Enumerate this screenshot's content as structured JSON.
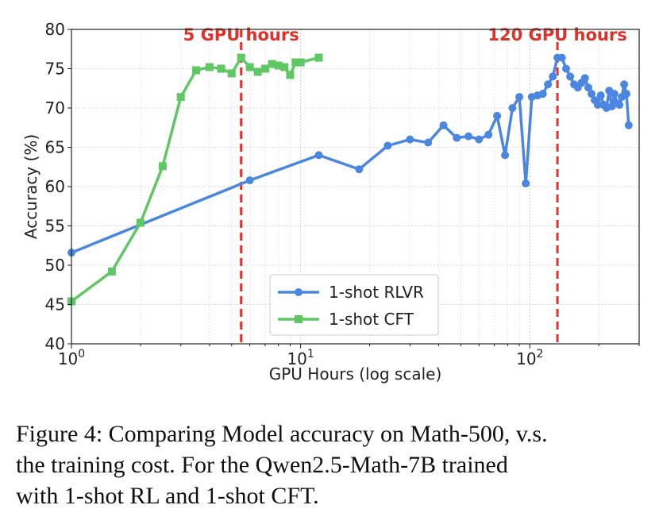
{
  "chart_data": {
    "type": "line",
    "xscale": "log",
    "xlabel": "GPU Hours (log scale)",
    "ylabel": "Accuracy (%)",
    "xlim": [
      1,
      300
    ],
    "ylim": [
      40,
      80
    ],
    "yticks": [
      40,
      45,
      50,
      55,
      60,
      65,
      70,
      75,
      80
    ],
    "xticks": [
      {
        "value": 1,
        "base": "10",
        "exp": "0"
      },
      {
        "value": 10,
        "base": "10",
        "exp": "1"
      },
      {
        "value": 100,
        "base": "10",
        "exp": "2"
      }
    ],
    "grid": true,
    "legend_position": "lower-center",
    "series": [
      {
        "name": "1-shot RLVR",
        "color": "#4b86e0",
        "marker": "circle",
        "points": [
          [
            1,
            51.6
          ],
          [
            6,
            60.8
          ],
          [
            12,
            64.0
          ],
          [
            18,
            62.2
          ],
          [
            24,
            65.2
          ],
          [
            30,
            66.0
          ],
          [
            36,
            65.6
          ],
          [
            42,
            67.8
          ],
          [
            48,
            66.2
          ],
          [
            54,
            66.4
          ],
          [
            60,
            66.0
          ],
          [
            66,
            66.6
          ],
          [
            72,
            69.0
          ],
          [
            78,
            64.0
          ],
          [
            84,
            70.0
          ],
          [
            90,
            71.4
          ],
          [
            96,
            60.4
          ],
          [
            102,
            71.4
          ],
          [
            108,
            71.6
          ],
          [
            114,
            71.8
          ],
          [
            120,
            73.0
          ],
          [
            126,
            74.0
          ],
          [
            132,
            76.4
          ],
          [
            138,
            76.4
          ],
          [
            144,
            75.0
          ],
          [
            150,
            74.0
          ],
          [
            156,
            73.0
          ],
          [
            162,
            72.6
          ],
          [
            168,
            73.2
          ],
          [
            174,
            73.8
          ],
          [
            180,
            72.6
          ],
          [
            186,
            71.8
          ],
          [
            192,
            71.0
          ],
          [
            198,
            70.4
          ],
          [
            204,
            71.6
          ],
          [
            210,
            70.4
          ],
          [
            216,
            70.0
          ],
          [
            222,
            72.2
          ],
          [
            228,
            70.2
          ],
          [
            234,
            71.8
          ],
          [
            240,
            70.6
          ],
          [
            246,
            70.4
          ],
          [
            252,
            71.4
          ],
          [
            258,
            73.0
          ],
          [
            264,
            71.8
          ],
          [
            270,
            67.8
          ]
        ]
      },
      {
        "name": "1-shot CFT",
        "color": "#5fc763",
        "marker": "square",
        "points": [
          [
            1,
            45.4
          ],
          [
            1.5,
            49.2
          ],
          [
            2,
            55.4
          ],
          [
            2.5,
            62.6
          ],
          [
            3,
            71.4
          ],
          [
            3.5,
            74.8
          ],
          [
            4,
            75.2
          ],
          [
            4.5,
            75.0
          ],
          [
            5,
            74.4
          ],
          [
            5.5,
            76.4
          ],
          [
            6,
            75.2
          ],
          [
            6.5,
            74.6
          ],
          [
            7,
            75.0
          ],
          [
            7.5,
            75.6
          ],
          [
            8,
            75.4
          ],
          [
            8.5,
            75.2
          ],
          [
            9,
            74.2
          ],
          [
            9.5,
            75.8
          ],
          [
            10,
            75.8
          ],
          [
            12,
            76.4
          ]
        ]
      }
    ],
    "vlines": [
      {
        "x": 5.5,
        "label": "5 GPU hours",
        "color": "#e0312a"
      },
      {
        "x": 132,
        "label": "120 GPU hours",
        "color": "#e0312a"
      }
    ]
  },
  "caption": {
    "line1": "Figure 4: Comparing Model accuracy on Math-500, v.s.",
    "line2": "the training cost.  For the Qwen2.5-Math-7B trained",
    "line3": "with 1-shot RL and 1-shot CFT."
  }
}
